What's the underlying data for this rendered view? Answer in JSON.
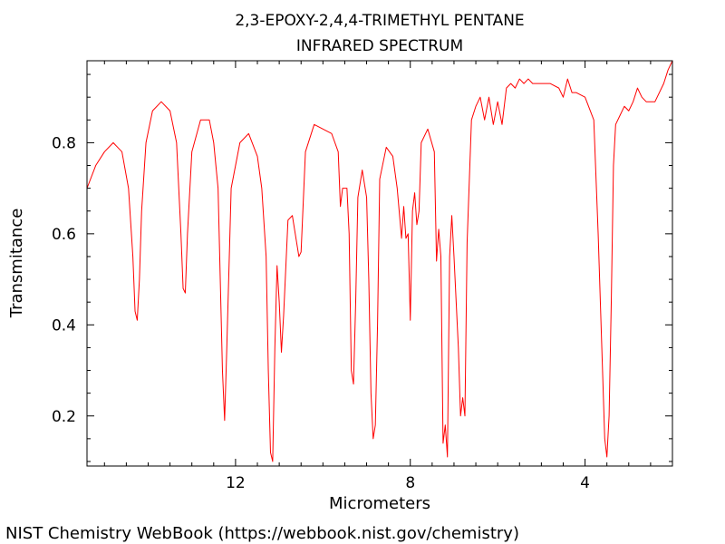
{
  "chart_data": {
    "type": "line",
    "title_lines": [
      "2,3-EPOXY-2,4,4-TRIMETHYL PENTANE",
      "INFRARED SPECTRUM"
    ],
    "xlabel": "Micrometers",
    "ylabel": "Transmitance",
    "xlim": [
      15.4,
      2.0
    ],
    "ylim": [
      0.09,
      0.98
    ],
    "x_ticks": [
      12,
      8,
      4
    ],
    "x_tick_labels": [
      "12",
      "8",
      "4"
    ],
    "y_ticks": [
      0.2,
      0.4,
      0.6,
      0.8
    ],
    "y_tick_labels": [
      "0.2",
      "0.4",
      "0.6",
      "0.8"
    ],
    "x_minor_step": 0.5,
    "y_minor_step": 0.05,
    "grid": false,
    "line_color": "#ff0000",
    "series": [
      {
        "x": [
          15.4,
          15.2,
          15.0,
          14.8,
          14.6,
          14.45,
          14.35,
          14.3,
          14.25,
          14.2,
          14.15,
          14.05,
          13.9,
          13.7,
          13.5,
          13.35,
          13.25,
          13.2,
          13.15,
          13.1,
          13.0,
          12.8,
          12.6,
          12.5,
          12.45,
          12.4,
          12.35,
          12.3,
          12.25,
          12.2,
          12.1,
          11.9,
          11.7,
          11.5,
          11.4,
          11.3,
          11.25,
          11.2,
          11.15,
          11.1,
          11.05,
          11.0,
          10.95,
          10.9,
          10.8,
          10.7,
          10.55,
          10.5,
          10.4,
          10.2,
          10.0,
          9.8,
          9.65,
          9.6,
          9.55,
          9.45,
          9.4,
          9.35,
          9.3,
          9.25,
          9.2,
          9.1,
          9.0,
          8.95,
          8.9,
          8.85,
          8.8,
          8.75,
          8.7,
          8.55,
          8.4,
          8.3,
          8.2,
          8.15,
          8.1,
          8.05,
          8.0,
          7.95,
          7.9,
          7.85,
          7.8,
          7.75,
          7.6,
          7.45,
          7.4,
          7.35,
          7.3,
          7.25,
          7.2,
          7.15,
          7.1,
          7.05,
          7.0,
          6.95,
          6.9,
          6.85,
          6.8,
          6.75,
          6.7,
          6.6,
          6.5,
          6.4,
          6.3,
          6.2,
          6.1,
          6.0,
          5.9,
          5.8,
          5.7,
          5.6,
          5.5,
          5.4,
          5.3,
          5.2,
          5.0,
          4.8,
          4.6,
          4.5,
          4.4,
          4.3,
          4.2,
          4.0,
          3.8,
          3.7,
          3.6,
          3.55,
          3.5,
          3.45,
          3.4,
          3.35,
          3.3,
          3.2,
          3.1,
          3.0,
          2.9,
          2.8,
          2.7,
          2.6,
          2.4,
          2.2,
          2.1,
          2.0
        ],
        "y": [
          0.7,
          0.75,
          0.78,
          0.8,
          0.78,
          0.7,
          0.55,
          0.43,
          0.41,
          0.5,
          0.65,
          0.8,
          0.87,
          0.89,
          0.87,
          0.8,
          0.6,
          0.48,
          0.47,
          0.6,
          0.78,
          0.85,
          0.85,
          0.8,
          0.75,
          0.7,
          0.5,
          0.3,
          0.19,
          0.35,
          0.7,
          0.8,
          0.82,
          0.77,
          0.7,
          0.55,
          0.3,
          0.12,
          0.1,
          0.35,
          0.53,
          0.45,
          0.34,
          0.42,
          0.63,
          0.64,
          0.55,
          0.56,
          0.78,
          0.84,
          0.83,
          0.82,
          0.78,
          0.66,
          0.7,
          0.7,
          0.6,
          0.3,
          0.27,
          0.45,
          0.68,
          0.74,
          0.68,
          0.5,
          0.25,
          0.15,
          0.18,
          0.4,
          0.72,
          0.79,
          0.77,
          0.7,
          0.59,
          0.66,
          0.59,
          0.6,
          0.41,
          0.65,
          0.69,
          0.62,
          0.65,
          0.8,
          0.83,
          0.78,
          0.54,
          0.61,
          0.55,
          0.14,
          0.18,
          0.11,
          0.55,
          0.64,
          0.55,
          0.45,
          0.35,
          0.2,
          0.24,
          0.2,
          0.58,
          0.85,
          0.88,
          0.9,
          0.85,
          0.9,
          0.84,
          0.89,
          0.84,
          0.92,
          0.93,
          0.92,
          0.94,
          0.93,
          0.94,
          0.93,
          0.93,
          0.93,
          0.92,
          0.9,
          0.94,
          0.91,
          0.91,
          0.9,
          0.85,
          0.6,
          0.3,
          0.15,
          0.11,
          0.2,
          0.45,
          0.75,
          0.84,
          0.86,
          0.88,
          0.87,
          0.89,
          0.92,
          0.9,
          0.89,
          0.89,
          0.93,
          0.96,
          0.98
        ]
      }
    ]
  },
  "footer": {
    "source_text": "NIST Chemistry WebBook (https://webbook.nist.gov/chemistry)"
  }
}
